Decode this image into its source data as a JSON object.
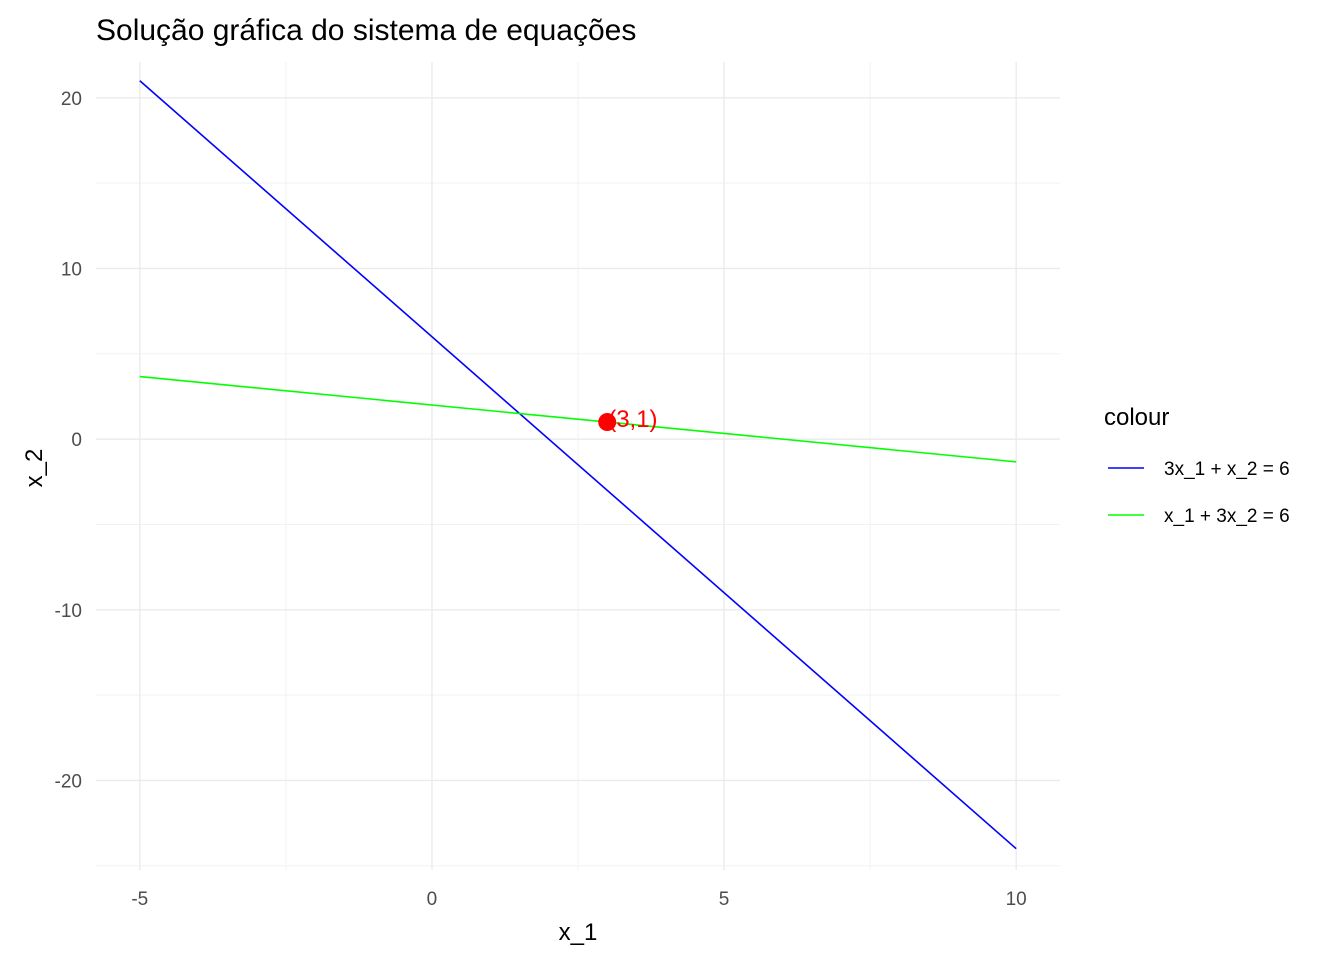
{
  "chart_data": {
    "type": "line",
    "title": "Solução gráfica do sistema de equações",
    "xlabel": "x_1",
    "ylabel": "x_2",
    "xlim": [
      -5,
      10
    ],
    "ylim": [
      -25,
      21
    ],
    "x_ticks": [
      -5,
      0,
      5,
      10
    ],
    "y_ticks": [
      -20,
      -10,
      0,
      10,
      20
    ],
    "grid": true,
    "legend": {
      "title": "colour",
      "position": "right"
    },
    "series": [
      {
        "name": "3x_1 + x_2 = 6",
        "color": "#0000ff",
        "x": [
          -5,
          10
        ],
        "y": [
          21,
          -24
        ]
      },
      {
        "name": "x_1 + 3x_2 = 6",
        "color": "#00ff00",
        "x": [
          -5,
          10
        ],
        "y": [
          3.6667,
          -1.3333
        ]
      }
    ],
    "annotations": [
      {
        "label": "(3,1)",
        "x": 3,
        "y": 1,
        "color": "#ff0000"
      }
    ]
  }
}
